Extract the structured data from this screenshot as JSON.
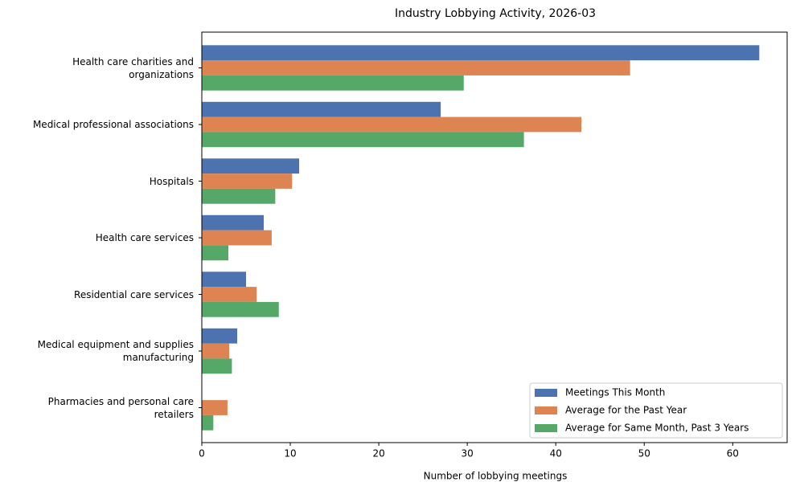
{
  "chart_data": {
    "type": "barh",
    "title": "Industry Lobbying Activity, 2026-03",
    "x_label": "Number of lobbying meetings",
    "categories": [
      "Health care charities and\norganizations",
      "Medical professional associations",
      "Hospitals",
      "Health care services",
      "Residential care services",
      "Medical equipment and supplies\nmanufacturing",
      "Pharmacies and personal care\nretailers"
    ],
    "series": [
      {
        "name": "Meetings This Month",
        "color": "#4c72b0",
        "values": [
          63,
          27,
          11,
          7,
          5,
          4,
          0
        ]
      },
      {
        "name": "Average for the Past Year",
        "color": "#dd8452",
        "values": [
          48.4,
          42.9,
          10.2,
          7.9,
          6.2,
          3.1,
          2.9
        ]
      },
      {
        "name": "Average for Same Month, Past 3 Years",
        "color": "#55a868",
        "values": [
          29.6,
          36.4,
          8.3,
          3,
          8.7,
          3.4,
          1.3
        ]
      }
    ],
    "xlim": [
      0,
      66.15
    ],
    "xticks": [
      0,
      10,
      20,
      30,
      40,
      50,
      60
    ],
    "grid": false,
    "legend": "lower right"
  }
}
